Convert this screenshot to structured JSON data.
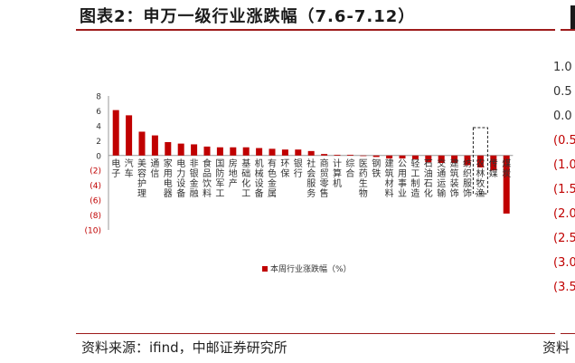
{
  "title": "图表2：申万一级行业涨跌幅（7.6-7.12）",
  "source": "资料来源：ifind，中邮证券研究所",
  "source_right_fragment": "资料",
  "right_panel_ticks": [
    "1.0",
    "0.5",
    "0.0",
    "(0.5",
    "(1.0",
    "(1.5",
    "(2.0",
    "(2.5",
    "(3.0",
    "(3.5"
  ],
  "colors": {
    "bar": "#c00000",
    "rule": "#9e1b1b",
    "negative_tick": "#c00000"
  },
  "chart_data": {
    "type": "bar",
    "categories": [
      "电子",
      "汽车",
      "美容护理",
      "通信",
      "家用电器",
      "电力设备",
      "非银金融",
      "食品饮料",
      "国防军工",
      "房地产",
      "基础化工",
      "机械设备",
      "有色金属",
      "环保",
      "银行",
      "社会服务",
      "商贸零售",
      "计算机",
      "综合",
      "医药生物",
      "钢铁",
      "建筑材料",
      "公用事业",
      "轻工制造",
      "石油石化",
      "交通运输",
      "建筑装饰",
      "纺织服饰",
      "农林牧渔",
      "传媒",
      "煤炭"
    ],
    "values": [
      6.1,
      5.4,
      3.2,
      2.7,
      1.8,
      1.6,
      1.5,
      1.2,
      1.1,
      1.1,
      1.1,
      1.0,
      0.9,
      0.8,
      0.8,
      0.6,
      0.2,
      0.1,
      0.1,
      0.0,
      -0.2,
      -0.4,
      -0.4,
      -0.5,
      -0.9,
      -1.0,
      -1.0,
      -1.3,
      -1.6,
      -2.0,
      -7.8
    ],
    "yticks": [
      "8",
      "6",
      "4",
      "2",
      "0",
      "(2)",
      "(4)",
      "(6)",
      "(8)",
      "(10)"
    ],
    "ylim": [
      -10,
      8
    ],
    "legend": "本周行业涨跌幅（%）",
    "highlight": "农林牧渔"
  }
}
